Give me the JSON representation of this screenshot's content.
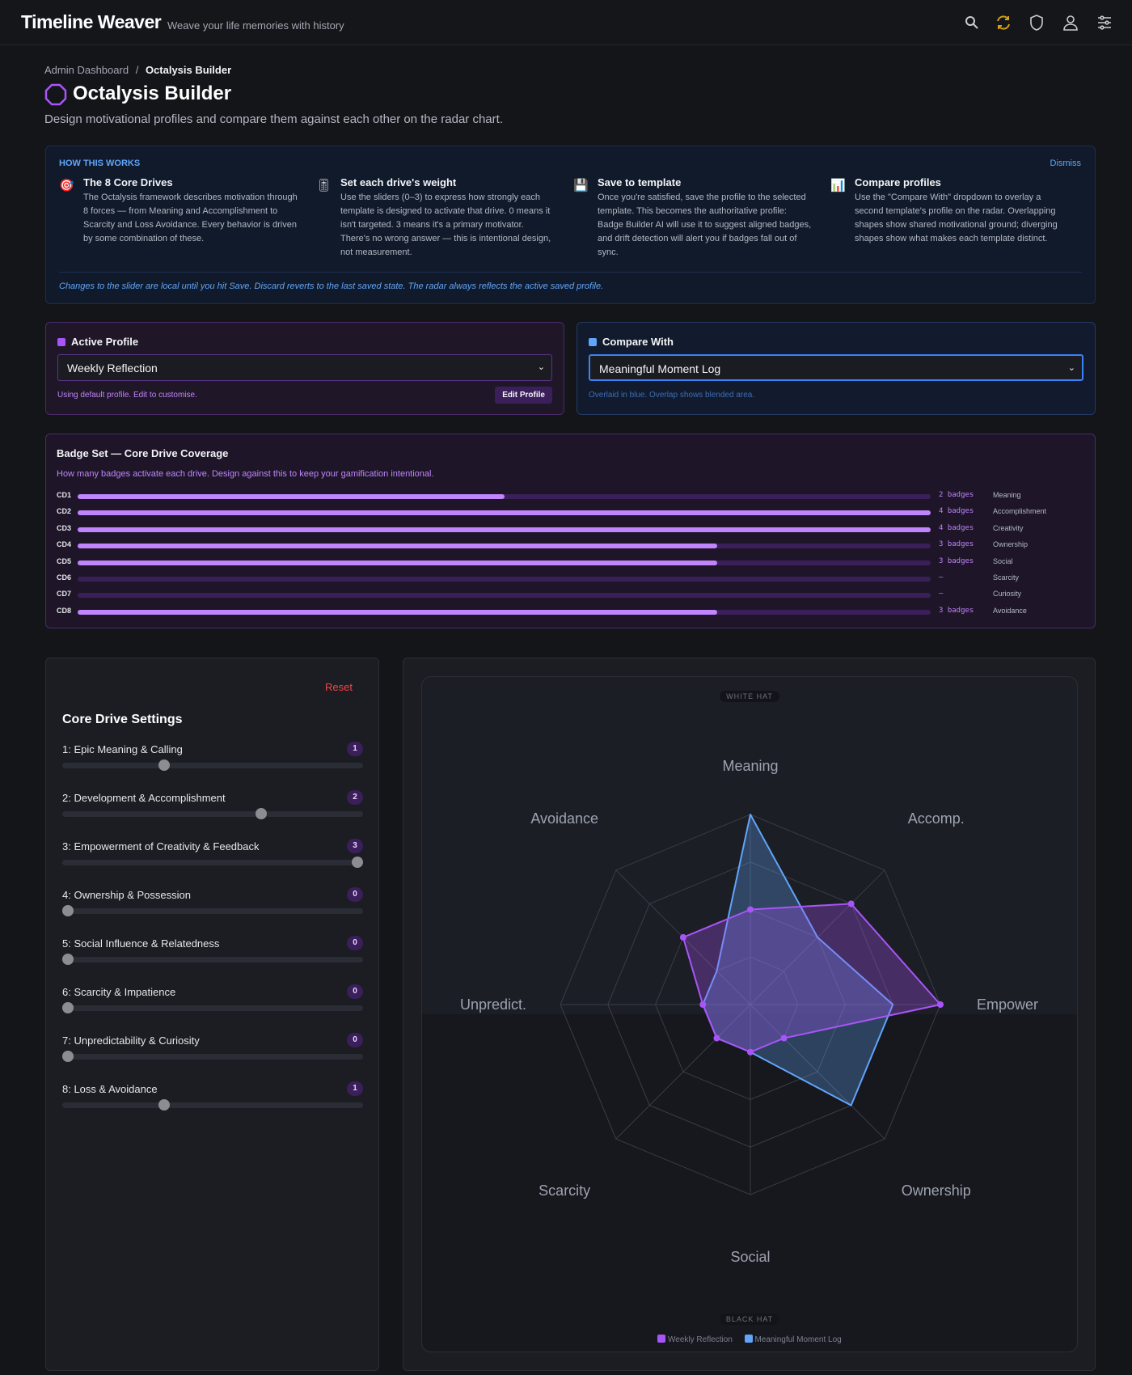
{
  "header": {
    "title": "Timeline Weaver",
    "subtitle": "Weave your life memories with history",
    "icons": [
      "search-icon",
      "sync-icon",
      "shield-icon",
      "user-icon",
      "sliders-icon"
    ]
  },
  "breadcrumb": {
    "parent": "Admin Dashboard",
    "separator": "/",
    "current": "Octalysis Builder"
  },
  "page": {
    "title": "Octalysis Builder",
    "description": "Design motivational profiles and compare them against each other on the radar chart."
  },
  "info": {
    "heading": "HOW THIS WORKS",
    "dismiss": "Dismiss",
    "steps": [
      {
        "icon": "target-icon",
        "title": "The 8 Core Drives",
        "text": "The Octalysis framework describes motivation through 8 forces — from Meaning and Accomplishment to Scarcity and Loss Avoidance. Every behavior is driven by some combination of these."
      },
      {
        "icon": "slider-icon",
        "title": "Set each drive's weight",
        "text": "Use the sliders (0–3) to express how strongly each template is designed to activate that drive. 0 means it isn't targeted. 3 means it's a primary motivator. There's no wrong answer — this is intentional design, not measurement."
      },
      {
        "icon": "floppy-disk-icon",
        "title": "Save to template",
        "text": "Once you're satisfied, save the profile to the selected template. This becomes the authoritative profile: Badge Builder AI will use it to suggest aligned badges, and drift detection will alert you if badges fall out of sync."
      },
      {
        "icon": "bar-chart-icon",
        "title": "Compare profiles",
        "text": "Use the \"Compare With\" dropdown to overlay a second template's profile on the radar. Overlapping shapes show shared motivational ground; diverging shapes show what makes each template distinct."
      }
    ],
    "note": "Changes to the slider are local until you hit Save. Discard reverts to the last saved state. The radar always reflects the active saved profile."
  },
  "active_profile": {
    "label": "Active Profile",
    "selected": "Weekly Reflection",
    "hint": "Using default profile. Edit to customise.",
    "edit_button": "Edit Profile",
    "color": "#a855f7"
  },
  "compare_with": {
    "label": "Compare With",
    "selected": "Meaningful Moment Log",
    "hint": "Overlaid in blue. Overlap shows blended area.",
    "color": "#60a5fa"
  },
  "badge_set": {
    "title": "Badge Set — Core Drive Coverage",
    "subtitle": "How many badges activate each drive. Design against this to keep your gamification intentional.",
    "max": 4,
    "rows": [
      {
        "code": "CD1",
        "count": 2,
        "count_label": "2 badges",
        "name": "Meaning"
      },
      {
        "code": "CD2",
        "count": 4,
        "count_label": "4 badges",
        "name": "Accomplishment"
      },
      {
        "code": "CD3",
        "count": 4,
        "count_label": "4 badges",
        "name": "Creativity"
      },
      {
        "code": "CD4",
        "count": 3,
        "count_label": "3 badges",
        "name": "Ownership"
      },
      {
        "code": "CD5",
        "count": 3,
        "count_label": "3 badges",
        "name": "Social"
      },
      {
        "code": "CD6",
        "count": 0,
        "count_label": "–",
        "name": "Scarcity"
      },
      {
        "code": "CD7",
        "count": 0,
        "count_label": "–",
        "name": "Curiosity"
      },
      {
        "code": "CD8",
        "count": 3,
        "count_label": "3 badges",
        "name": "Avoidance"
      }
    ]
  },
  "settings": {
    "title": "Core Drive Settings",
    "reset": "Reset",
    "min": 0,
    "max": 3,
    "drives": [
      {
        "label": "1: Epic Meaning & Calling",
        "value": 1
      },
      {
        "label": "2: Development & Accomplishment",
        "value": 2
      },
      {
        "label": "3: Empowerment of Creativity & Feedback",
        "value": 3
      },
      {
        "label": "4: Ownership & Possession",
        "value": 0
      },
      {
        "label": "5: Social Influence & Relatedness",
        "value": 0
      },
      {
        "label": "6: Scarcity & Impatience",
        "value": 0
      },
      {
        "label": "7: Unpredictability & Curiosity",
        "value": 0
      },
      {
        "label": "8: Loss & Avoidance",
        "value": 1
      }
    ]
  },
  "chart_data": {
    "type": "radar",
    "top_label": "WHITE HAT",
    "bottom_label": "BLACK HAT",
    "axes": [
      "Meaning",
      "Accomp.",
      "Empower",
      "Ownership",
      "Social",
      "Scarcity",
      "Unpredict.",
      "Avoidance"
    ],
    "range": [
      0,
      3
    ],
    "legend_position": "bottom",
    "series": [
      {
        "name": "Weekly Reflection",
        "color": "#a855f7",
        "values": [
          1,
          2,
          3,
          0,
          0,
          0,
          0,
          1
        ]
      },
      {
        "name": "Meaningful Moment Log",
        "color": "#60a5fa",
        "values": [
          3,
          1,
          2,
          2,
          0,
          0,
          0,
          0
        ]
      }
    ]
  }
}
